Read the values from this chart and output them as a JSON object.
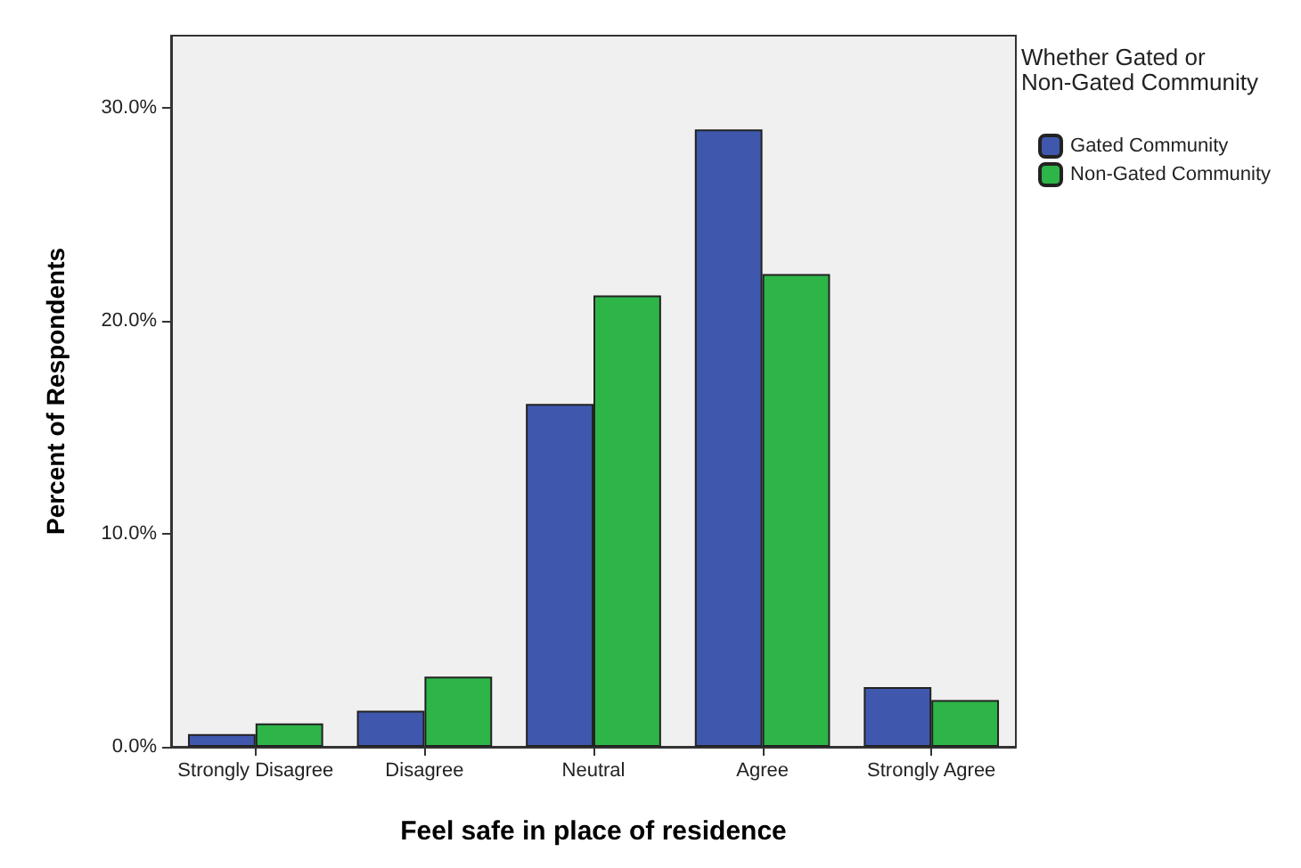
{
  "chart_data": {
    "type": "bar",
    "xlabel": "Feel safe in place of residence",
    "ylabel": "Percent of Respondents",
    "legend_title": "Whether Gated or Non-Gated Community",
    "categories": [
      "Strongly Disagree",
      "Disagree",
      "Neutral",
      "Agree",
      "Strongly Agree"
    ],
    "series": [
      {
        "name": "Gated Community",
        "color": "#3f58ad",
        "values": [
          0.6,
          1.7,
          16.1,
          29.0,
          2.8
        ]
      },
      {
        "name": "Non-Gated Community",
        "color": "#2eb548",
        "values": [
          1.1,
          3.3,
          21.2,
          22.2,
          2.2
        ]
      }
    ],
    "ylim": [
      0,
      33.4
    ],
    "yticks": [
      {
        "value": 0,
        "label": "0.0%"
      },
      {
        "value": 10,
        "label": "10.0%"
      },
      {
        "value": 20,
        "label": "20.0%"
      },
      {
        "value": 30,
        "label": "30.0%"
      }
    ],
    "grid": false,
    "legend": "top right"
  }
}
